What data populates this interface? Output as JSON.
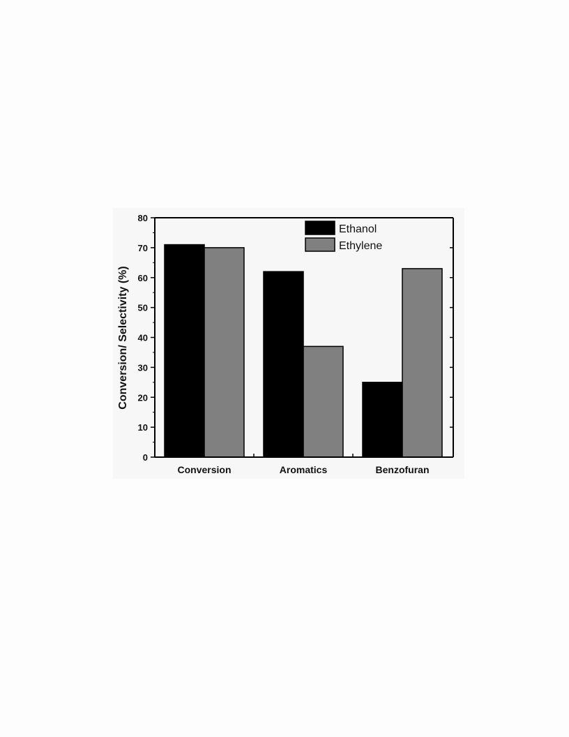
{
  "chart_data": {
    "type": "bar",
    "categories": [
      "Conversion",
      "Aromatics",
      "Benzofuran"
    ],
    "series": [
      {
        "name": "Ethanol",
        "values": [
          71,
          62,
          25
        ],
        "color": "#000000"
      },
      {
        "name": "Ethylene",
        "values": [
          70,
          37,
          63
        ],
        "color": "#808080"
      }
    ],
    "title": "",
    "xlabel": "",
    "ylabel": "Conversion/ Selectivity (%)",
    "ylim": [
      0,
      80
    ],
    "yticks": [
      0,
      10,
      20,
      30,
      40,
      50,
      60,
      70,
      80
    ],
    "grid": false,
    "legend_position": "top-right"
  }
}
